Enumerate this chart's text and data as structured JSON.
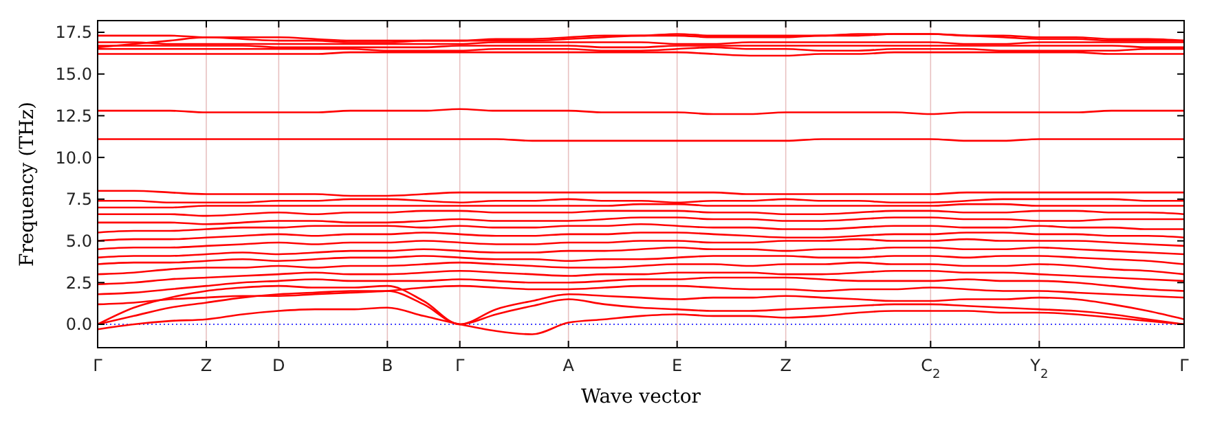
{
  "chart_data": {
    "type": "line",
    "xlabel": "Wave vector",
    "ylabel": "Frequency (THz)",
    "categories": [
      "Γ",
      null,
      null,
      "Z",
      null,
      "D",
      null,
      null,
      "B",
      null,
      "Γ",
      null,
      null,
      "A",
      null,
      null,
      "E",
      null,
      null,
      "Z",
      null,
      null,
      null,
      "C$_{2}$",
      null,
      null,
      "Y$_{2}$",
      null,
      null,
      null,
      "Γ"
    ],
    "ylim": [
      -1.4,
      18.2
    ],
    "yticks": [
      {
        "value": 0,
        "label": "0.0"
      },
      {
        "value": 2.5,
        "label": "2.5"
      },
      {
        "value": 5,
        "label": "5.0"
      },
      {
        "value": 7.5,
        "label": "7.5"
      },
      {
        "value": 10,
        "label": "10.0"
      },
      {
        "value": 12.5,
        "label": "12.5"
      },
      {
        "value": 15,
        "label": "15.0"
      },
      {
        "value": 17.5,
        "label": "17.5"
      }
    ],
    "grid": "x",
    "line_style": "solid",
    "ref_lines": [
      {
        "axis": "y",
        "value": 0,
        "color": "#0000ff",
        "line_style": "dotted"
      }
    ],
    "series": [
      {
        "color": "#ff0000",
        "values": [
          -0.3,
          0.0,
          0.2,
          0.3,
          0.6,
          0.8,
          0.9,
          0.9,
          1.0,
          0.5,
          0,
          -0.4,
          -0.6,
          0.1,
          0.3,
          0.5,
          0.6,
          0.5,
          0.5,
          0.4,
          0.5,
          0.7,
          0.8,
          0.8,
          0.8,
          0.7,
          0.7,
          0.6,
          0.4,
          0.2,
          0
        ]
      },
      {
        "color": "#ff0000",
        "values": [
          0,
          0.5,
          1.0,
          1.3,
          1.6,
          1.8,
          1.9,
          2.0,
          2.0,
          1.2,
          0,
          0.6,
          1.1,
          1.5,
          1.2,
          1.0,
          0.9,
          0.8,
          0.8,
          0.9,
          1.0,
          1.1,
          1.2,
          1.2,
          1.1,
          1.0,
          0.9,
          0.8,
          0.6,
          0.3,
          0
        ]
      },
      {
        "color": "#ff0000",
        "values": [
          0,
          1.0,
          1.6,
          2.0,
          2.2,
          2.3,
          2.2,
          2.2,
          2.3,
          1.4,
          0,
          0.9,
          1.4,
          1.8,
          1.7,
          1.6,
          1.5,
          1.6,
          1.6,
          1.7,
          1.6,
          1.5,
          1.4,
          1.4,
          1.5,
          1.5,
          1.6,
          1.5,
          1.2,
          0.8,
          0.3
        ]
      },
      {
        "color": "#ff0000",
        "values": [
          1.2,
          1.3,
          1.5,
          1.6,
          1.7,
          1.7,
          1.8,
          1.9,
          2.0,
          2.2,
          2.3,
          2.2,
          2.1,
          2.1,
          2.2,
          2.3,
          2.3,
          2.2,
          2.1,
          2.1,
          2.0,
          2.1,
          2.1,
          2.2,
          2.1,
          2.0,
          2.0,
          1.9,
          1.8,
          1.7,
          1.6
        ]
      },
      {
        "color": "#ff0000",
        "values": [
          1.8,
          1.9,
          2.1,
          2.3,
          2.5,
          2.6,
          2.7,
          2.6,
          2.6,
          2.6,
          2.7,
          2.6,
          2.5,
          2.5,
          2.6,
          2.7,
          2.7,
          2.8,
          2.8,
          2.8,
          2.7,
          2.6,
          2.6,
          2.6,
          2.7,
          2.6,
          2.6,
          2.5,
          2.3,
          2.1,
          2.0
        ]
      },
      {
        "color": "#ff0000",
        "values": [
          2.4,
          2.5,
          2.7,
          2.8,
          2.9,
          3.0,
          3.1,
          3.0,
          3.0,
          3.1,
          3.2,
          3.1,
          3.0,
          2.9,
          3.0,
          3.0,
          3.1,
          3.1,
          3.1,
          3.0,
          3.0,
          3.1,
          3.2,
          3.2,
          3.1,
          3.1,
          3.0,
          2.9,
          2.8,
          2.7,
          2.6
        ]
      },
      {
        "color": "#ff0000",
        "values": [
          3.0,
          3.1,
          3.3,
          3.4,
          3.4,
          3.5,
          3.4,
          3.5,
          3.5,
          3.6,
          3.7,
          3.6,
          3.5,
          3.4,
          3.4,
          3.5,
          3.6,
          3.6,
          3.5,
          3.6,
          3.6,
          3.7,
          3.6,
          3.6,
          3.5,
          3.5,
          3.6,
          3.5,
          3.3,
          3.2,
          3.0
        ]
      },
      {
        "color": "#ff0000",
        "values": [
          3.6,
          3.7,
          3.7,
          3.8,
          3.9,
          3.8,
          3.9,
          4.0,
          4.0,
          4.1,
          4.0,
          3.9,
          3.9,
          3.8,
          3.9,
          3.9,
          4.0,
          4.1,
          4.1,
          4.1,
          4.0,
          4.0,
          4.1,
          4.1,
          4.0,
          4.1,
          4.1,
          4.0,
          3.9,
          3.8,
          3.6
        ]
      },
      {
        "color": "#ff0000",
        "values": [
          4.0,
          4.1,
          4.1,
          4.2,
          4.3,
          4.2,
          4.3,
          4.4,
          4.4,
          4.5,
          4.4,
          4.3,
          4.3,
          4.4,
          4.4,
          4.5,
          4.6,
          4.5,
          4.5,
          4.4,
          4.5,
          4.5,
          4.6,
          4.6,
          4.5,
          4.5,
          4.6,
          4.5,
          4.4,
          4.3,
          4.2
        ]
      },
      {
        "color": "#ff0000",
        "values": [
          4.5,
          4.6,
          4.6,
          4.7,
          4.8,
          4.9,
          4.8,
          4.9,
          4.9,
          5.0,
          4.9,
          4.8,
          4.8,
          4.9,
          4.9,
          5.0,
          5.0,
          4.9,
          4.9,
          5.0,
          5.0,
          5.1,
          5.0,
          5.0,
          5.1,
          5.0,
          5.0,
          5.0,
          4.9,
          4.8,
          4.7
        ]
      },
      {
        "color": "#ff0000",
        "values": [
          5.0,
          5.1,
          5.1,
          5.2,
          5.3,
          5.4,
          5.3,
          5.4,
          5.4,
          5.5,
          5.4,
          5.3,
          5.3,
          5.4,
          5.4,
          5.5,
          5.5,
          5.4,
          5.3,
          5.2,
          5.2,
          5.3,
          5.4,
          5.4,
          5.5,
          5.5,
          5.4,
          5.4,
          5.3,
          5.3,
          5.2
        ]
      },
      {
        "color": "#ff0000",
        "values": [
          5.5,
          5.6,
          5.6,
          5.7,
          5.8,
          5.8,
          5.9,
          5.9,
          5.9,
          5.8,
          5.9,
          5.8,
          5.8,
          5.9,
          5.9,
          6.0,
          5.9,
          5.8,
          5.8,
          5.7,
          5.7,
          5.8,
          5.9,
          5.9,
          5.8,
          5.8,
          5.9,
          5.8,
          5.8,
          5.7,
          5.7
        ]
      },
      {
        "color": "#ff0000",
        "values": [
          6.1,
          6.1,
          6.1,
          6.0,
          6.1,
          6.2,
          6.2,
          6.1,
          6.1,
          6.2,
          6.3,
          6.2,
          6.2,
          6.2,
          6.3,
          6.4,
          6.4,
          6.3,
          6.3,
          6.2,
          6.2,
          6.3,
          6.4,
          6.4,
          6.3,
          6.3,
          6.2,
          6.2,
          6.3,
          6.3,
          6.3
        ]
      },
      {
        "color": "#ff0000",
        "values": [
          6.6,
          6.6,
          6.6,
          6.5,
          6.6,
          6.7,
          6.6,
          6.7,
          6.7,
          6.8,
          6.8,
          6.7,
          6.7,
          6.7,
          6.8,
          6.8,
          6.8,
          6.7,
          6.7,
          6.6,
          6.6,
          6.7,
          6.8,
          6.8,
          6.7,
          6.7,
          6.8,
          6.8,
          6.7,
          6.7,
          6.6
        ]
      },
      {
        "color": "#ff0000",
        "values": [
          7.0,
          7.0,
          7.0,
          7.1,
          7.1,
          7.1,
          7.1,
          7.1,
          7.1,
          7.1,
          7.1,
          7.1,
          7.1,
          7.1,
          7.1,
          7.2,
          7.2,
          7.1,
          7.1,
          7.1,
          7.1,
          7.1,
          7.1,
          7.1,
          7.2,
          7.2,
          7.1,
          7.1,
          7.1,
          7.1,
          7.1
        ]
      },
      {
        "color": "#ff0000",
        "values": [
          7.4,
          7.4,
          7.3,
          7.3,
          7.3,
          7.4,
          7.4,
          7.5,
          7.5,
          7.4,
          7.3,
          7.4,
          7.4,
          7.5,
          7.4,
          7.4,
          7.3,
          7.4,
          7.4,
          7.5,
          7.4,
          7.4,
          7.3,
          7.3,
          7.4,
          7.5,
          7.5,
          7.5,
          7.5,
          7.4,
          7.4
        ]
      },
      {
        "color": "#ff0000",
        "values": [
          8.0,
          8.0,
          7.9,
          7.8,
          7.8,
          7.8,
          7.8,
          7.7,
          7.7,
          7.8,
          7.9,
          7.9,
          7.9,
          7.9,
          7.9,
          7.9,
          7.9,
          7.9,
          7.8,
          7.8,
          7.8,
          7.8,
          7.8,
          7.8,
          7.9,
          7.9,
          7.9,
          7.9,
          7.9,
          7.9,
          7.9
        ]
      },
      {
        "color": "#ff0000",
        "values": [
          11.1,
          11.1,
          11.1,
          11.1,
          11.1,
          11.1,
          11.1,
          11.1,
          11.1,
          11.1,
          11.1,
          11.1,
          11.0,
          11.0,
          11.0,
          11.0,
          11.0,
          11.0,
          11.0,
          11.0,
          11.1,
          11.1,
          11.1,
          11.1,
          11.0,
          11.0,
          11.1,
          11.1,
          11.1,
          11.1,
          11.1
        ]
      },
      {
        "color": "#ff0000",
        "values": [
          12.8,
          12.8,
          12.8,
          12.7,
          12.7,
          12.7,
          12.7,
          12.8,
          12.8,
          12.8,
          12.9,
          12.8,
          12.8,
          12.8,
          12.7,
          12.7,
          12.7,
          12.6,
          12.6,
          12.7,
          12.7,
          12.7,
          12.7,
          12.6,
          12.7,
          12.7,
          12.7,
          12.7,
          12.8,
          12.8,
          12.8
        ]
      },
      {
        "color": "#ff0000",
        "values": [
          16.2,
          16.2,
          16.2,
          16.2,
          16.2,
          16.2,
          16.2,
          16.3,
          16.3,
          16.3,
          16.3,
          16.3,
          16.3,
          16.3,
          16.3,
          16.3,
          16.3,
          16.2,
          16.1,
          16.1,
          16.2,
          16.2,
          16.3,
          16.3,
          16.3,
          16.3,
          16.3,
          16.3,
          16.2,
          16.2,
          16.2
        ]
      },
      {
        "color": "#ff0000",
        "values": [
          16.5,
          16.5,
          16.5,
          16.5,
          16.5,
          16.5,
          16.5,
          16.5,
          16.4,
          16.4,
          16.4,
          16.5,
          16.5,
          16.5,
          16.4,
          16.4,
          16.5,
          16.6,
          16.5,
          16.5,
          16.4,
          16.4,
          16.5,
          16.5,
          16.5,
          16.4,
          16.4,
          16.4,
          16.4,
          16.5,
          16.5
        ]
      },
      {
        "color": "#ff0000",
        "values": [
          16.7,
          16.7,
          16.7,
          16.7,
          16.7,
          16.6,
          16.6,
          16.6,
          16.6,
          16.6,
          16.7,
          16.7,
          16.7,
          16.7,
          16.6,
          16.6,
          16.7,
          16.7,
          16.7,
          16.7,
          16.7,
          16.7,
          16.7,
          16.7,
          16.7,
          16.7,
          16.7,
          16.7,
          16.7,
          16.6,
          16.6
        ]
      },
      {
        "color": "#ff0000",
        "values": [
          16.9,
          16.9,
          16.8,
          16.8,
          16.8,
          16.8,
          16.8,
          16.8,
          16.8,
          16.8,
          16.8,
          16.9,
          16.9,
          16.9,
          16.9,
          16.9,
          16.8,
          16.8,
          16.9,
          16.9,
          16.9,
          16.9,
          16.9,
          16.9,
          16.8,
          16.8,
          16.9,
          16.9,
          16.9,
          16.9,
          16.9
        ]
      },
      {
        "color": "#ff0000",
        "values": [
          16.6,
          16.8,
          17.0,
          17.2,
          17.1,
          17.0,
          17.0,
          16.9,
          16.9,
          17.0,
          17.0,
          17.0,
          17.0,
          17.1,
          17.2,
          17.3,
          17.3,
          17.2,
          17.2,
          17.2,
          17.3,
          17.3,
          17.4,
          17.4,
          17.3,
          17.2,
          17.1,
          17.1,
          17.0,
          17.0,
          17.0
        ]
      },
      {
        "color": "#ff0000",
        "values": [
          17.3,
          17.3,
          17.3,
          17.2,
          17.2,
          17.2,
          17.1,
          17.0,
          17.0,
          17.0,
          17.0,
          17.1,
          17.1,
          17.2,
          17.3,
          17.3,
          17.4,
          17.3,
          17.3,
          17.3,
          17.3,
          17.4,
          17.4,
          17.4,
          17.3,
          17.3,
          17.2,
          17.2,
          17.1,
          17.1,
          17.0
        ]
      }
    ]
  }
}
